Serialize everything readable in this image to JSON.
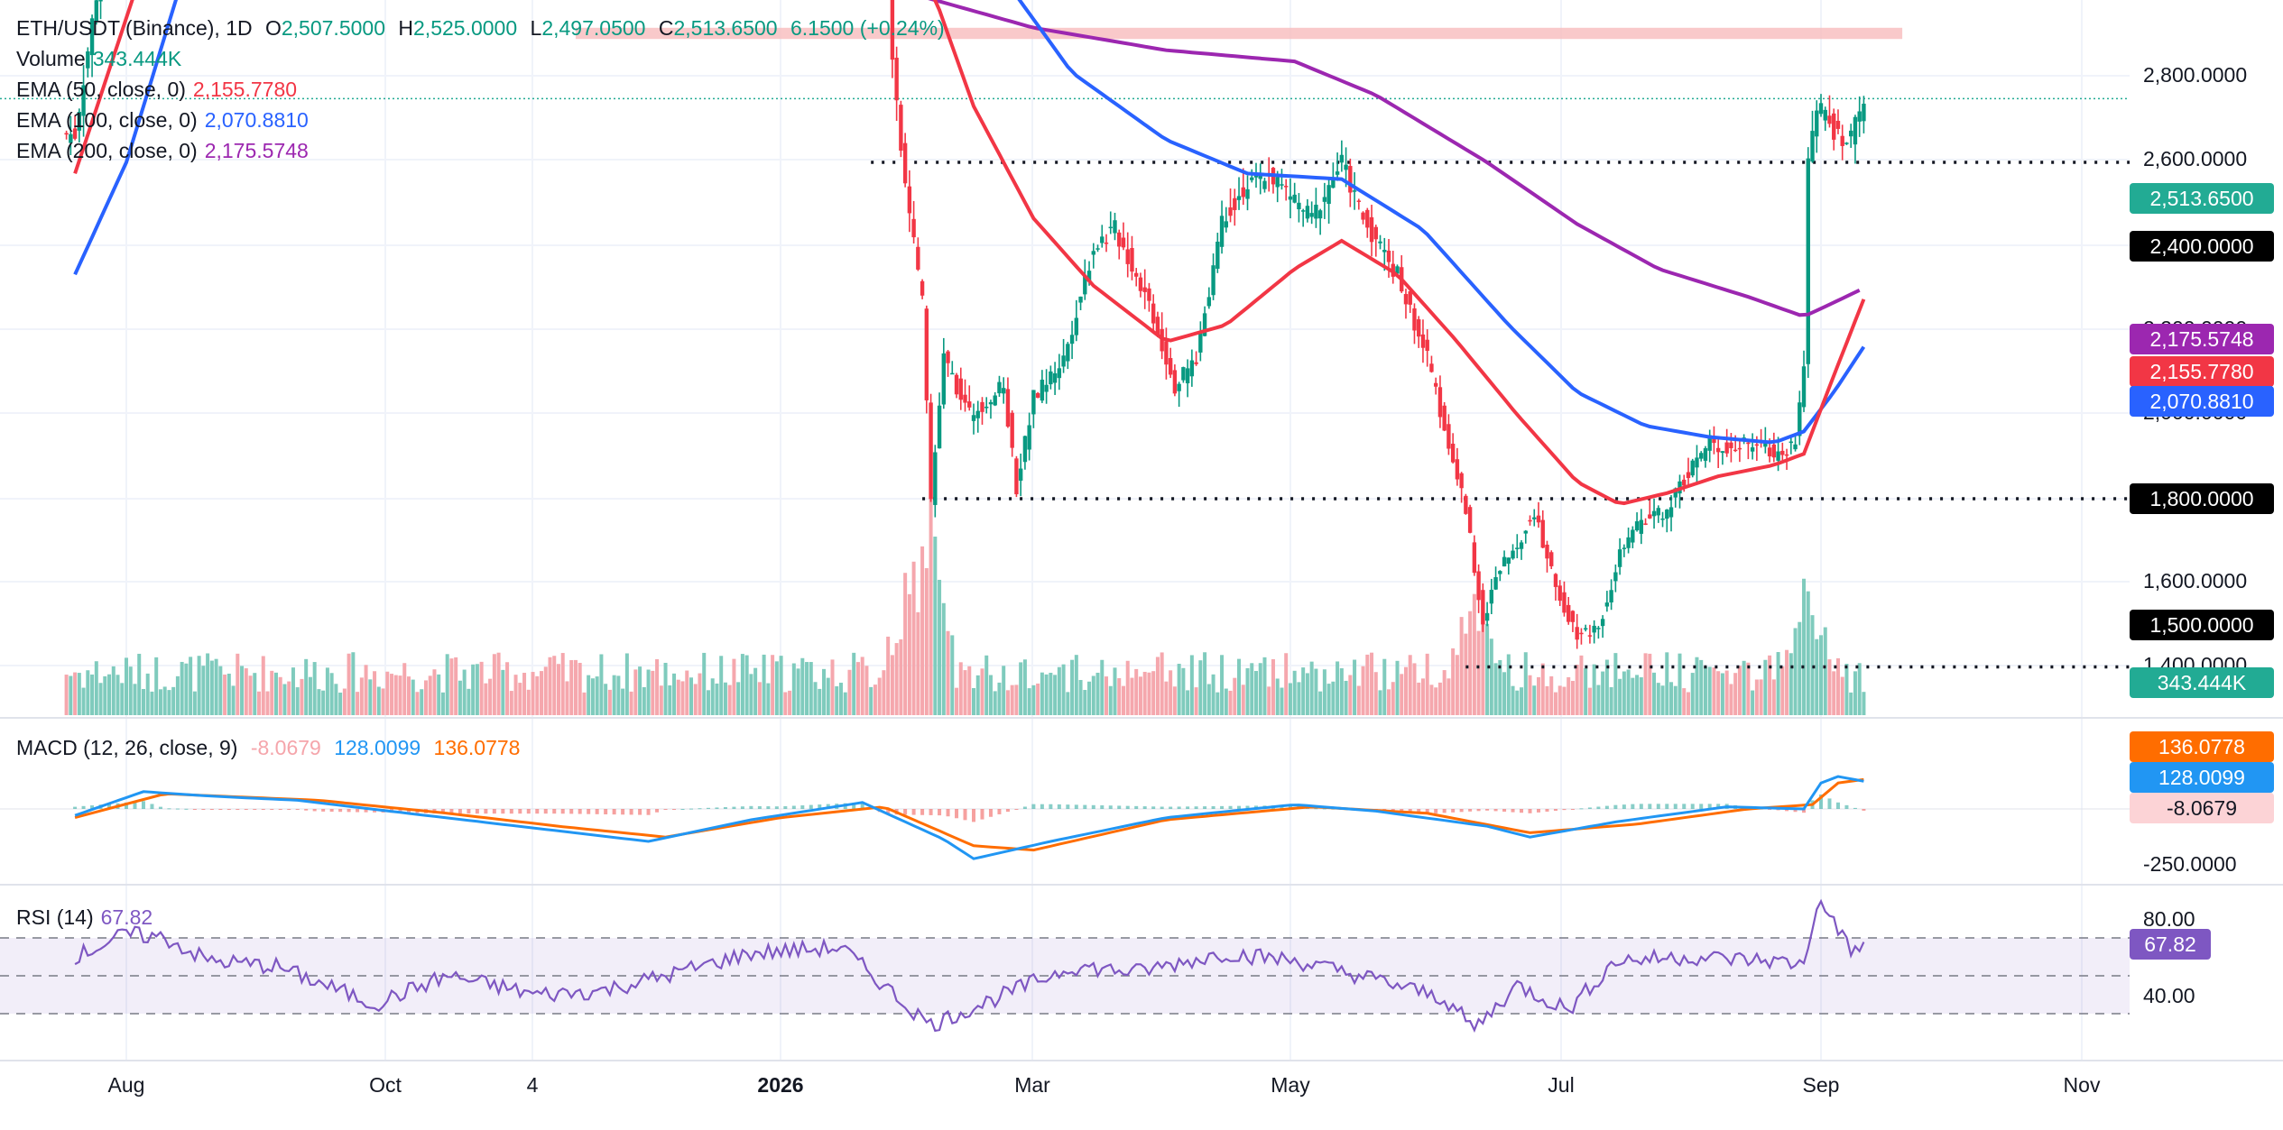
{
  "header": {
    "symbol": "ETH/USDT (Binance), 1D",
    "o_label": "O",
    "o_value": "2,507.5000",
    "h_label": "H",
    "h_value": "2,525.0000",
    "l_label": "L",
    "l_value": "2,497.0500",
    "c_label": "C",
    "c_value": "2,513.6500",
    "change": "6.1500 (+0.24%)"
  },
  "legend": {
    "volume_label": "Volume",
    "volume_value": "343.444K",
    "ema50_label": "EMA (50, close, 0)",
    "ema50_value": "2,155.7780",
    "ema100_label": "EMA (100, close, 0)",
    "ema100_value": "2,070.8810",
    "ema200_label": "EMA (200, close, 0)",
    "ema200_value": "2,175.5748",
    "macd_label": "MACD (12, 26, close, 9)",
    "macd_hist": "-8.0679",
    "macd_line": "128.0099",
    "macd_signal": "136.0778",
    "rsi_label": "RSI (14)",
    "rsi_value": "67.82"
  },
  "price_axis": [
    "2,800.0000",
    "2,600.0000",
    "2,200.0000",
    "2,000.0000",
    "1,600.0000",
    "1,400.0000"
  ],
  "price_tags": {
    "last": "2,513.6500",
    "level_2400": "2,400.0000",
    "ema200": "2,175.5748",
    "ema50": "2,155.7780",
    "ema100": "2,070.8810",
    "level_1800": "1,800.0000",
    "level_1500": "1,500.0000",
    "volume": "343.444K"
  },
  "macd_axis": [
    "-250.0000"
  ],
  "macd_tags": {
    "signal": "136.0778",
    "macd": "128.0099",
    "hist": "-8.0679"
  },
  "rsi_axis": [
    "80.00",
    "40.00"
  ],
  "rsi_tag": "67.82",
  "x_axis": [
    "Aug",
    "Oct",
    "4",
    "2026",
    "Mar",
    "May",
    "Jul",
    "Sep",
    "Nov"
  ],
  "colors": {
    "up": "#089981",
    "down": "#f23645",
    "ema50": "#f23645",
    "ema100": "#2962ff",
    "ema200": "#9c27b0",
    "macd": "#2196f3",
    "signal": "#ff6d00",
    "rsi": "#7e57c2",
    "zone": "#f8bbbd",
    "last": "#22ab94"
  },
  "chart_data": [
    {
      "type": "candlestick",
      "title": "ETH/USDT (Binance), 1D",
      "price_range": [
        1350,
        2950
      ],
      "horizontal_levels": [
        2400,
        1800,
        1500
      ],
      "resistance_zone": [
        2620,
        2640
      ],
      "last_price": 2513.65,
      "ohlc_last": {
        "open": 2507.5,
        "high": 2525.0,
        "low": 2497.05,
        "close": 2513.65,
        "change": 6.15,
        "change_pct": 0.24
      },
      "price_path": [
        [
          "2025-07-20",
          2450
        ],
        [
          "2025-07-25",
          2700
        ],
        [
          "2025-08-05",
          3300
        ],
        [
          "2025-08-12",
          3900
        ],
        [
          "2025-08-20",
          4300
        ],
        [
          "2025-09-01",
          4400
        ],
        [
          "2025-09-20",
          4500
        ],
        [
          "2025-10-10",
          4200
        ],
        [
          "2025-10-25",
          4000
        ],
        [
          "2025-11-05",
          3700
        ],
        [
          "2025-11-12",
          3300
        ],
        [
          "2025-11-15",
          3000
        ],
        [
          "2025-11-16",
          2750
        ],
        [
          "2025-11-22",
          2950
        ],
        [
          "2025-12-05",
          3050
        ],
        [
          "2025-12-20",
          2980
        ],
        [
          "2026-01-05",
          3050
        ],
        [
          "2026-01-15",
          3100
        ],
        [
          "2026-01-22",
          2950
        ],
        [
          "2026-01-25",
          2900
        ],
        [
          "2026-01-27",
          2600
        ],
        [
          "2026-01-30",
          2350
        ],
        [
          "2026-02-03",
          2150
        ],
        [
          "2026-02-05",
          1800
        ],
        [
          "2026-02-08",
          2050
        ],
        [
          "2026-02-14",
          1950
        ],
        [
          "2026-02-22",
          2000
        ],
        [
          "2026-02-25",
          1820
        ],
        [
          "2026-03-01",
          1980
        ],
        [
          "2026-03-08",
          2050
        ],
        [
          "2026-03-15",
          2250
        ],
        [
          "2026-03-20",
          2280
        ],
        [
          "2026-03-28",
          2150
        ],
        [
          "2026-04-03",
          2000
        ],
        [
          "2026-04-08",
          2050
        ],
        [
          "2026-04-14",
          2300
        ],
        [
          "2026-04-19",
          2350
        ],
        [
          "2026-04-25",
          2380
        ],
        [
          "2026-05-05",
          2300
        ],
        [
          "2026-05-12",
          2400
        ],
        [
          "2026-05-17",
          2300
        ],
        [
          "2026-05-25",
          2200
        ],
        [
          "2026-06-01",
          2050
        ],
        [
          "2026-06-06",
          1900
        ],
        [
          "2026-06-10",
          1780
        ],
        [
          "2026-06-14",
          1580
        ],
        [
          "2026-06-18",
          1680
        ],
        [
          "2026-06-22",
          1720
        ],
        [
          "2026-06-26",
          1780
        ],
        [
          "2026-07-01",
          1640
        ],
        [
          "2026-07-06",
          1560
        ],
        [
          "2026-07-11",
          1570
        ],
        [
          "2026-07-16",
          1700
        ],
        [
          "2026-07-21",
          1760
        ],
        [
          "2026-07-27",
          1780
        ],
        [
          "2026-08-01",
          1850
        ],
        [
          "2026-08-06",
          1900
        ],
        [
          "2026-08-11",
          1890
        ],
        [
          "2026-08-16",
          1900
        ],
        [
          "2026-08-21",
          1880
        ],
        [
          "2026-08-26",
          1900
        ],
        [
          "2026-08-28",
          2050
        ],
        [
          "2026-08-29",
          2400
        ],
        [
          "2026-08-31",
          2500
        ],
        [
          "2026-09-03",
          2470
        ],
        [
          "2026-09-06",
          2430
        ],
        [
          "2026-09-08",
          2440
        ],
        [
          "2026-09-11",
          2513.65
        ]
      ],
      "ema50_path": [
        [
          "2025-07-20",
          2380
        ],
        [
          "2025-08-05",
          2750
        ],
        [
          "2025-08-15",
          3100
        ],
        [
          "2025-09-01",
          3500
        ],
        [
          "2026-01-25",
          2950
        ],
        [
          "2026-02-01",
          2800
        ],
        [
          "2026-02-15",
          2500
        ],
        [
          "2026-03-01",
          2300
        ],
        [
          "2026-03-15",
          2180
        ],
        [
          "2026-04-01",
          2080
        ],
        [
          "2026-04-15",
          2110
        ],
        [
          "2026-05-01",
          2210
        ],
        [
          "2026-05-12",
          2260
        ],
        [
          "2026-05-25",
          2200
        ],
        [
          "2026-06-08",
          2080
        ],
        [
          "2026-06-22",
          1950
        ],
        [
          "2026-07-06",
          1830
        ],
        [
          "2026-07-16",
          1790
        ],
        [
          "2026-07-27",
          1810
        ],
        [
          "2026-08-08",
          1840
        ],
        [
          "2026-08-21",
          1860
        ],
        [
          "2026-08-28",
          1880
        ],
        [
          "2026-09-04",
          2020
        ],
        [
          "2026-09-11",
          2155.778
        ]
      ],
      "ema100_path": [
        [
          "2025-07-20",
          2200
        ],
        [
          "2025-08-01",
          2400
        ],
        [
          "2025-08-15",
          2750
        ],
        [
          "2025-09-01",
          3150
        ],
        [
          "2026-01-25",
          3300
        ],
        [
          "2026-02-05",
          2950
        ],
        [
          "2026-02-20",
          2750
        ],
        [
          "2026-03-10",
          2560
        ],
        [
          "2026-04-01",
          2440
        ],
        [
          "2026-04-20",
          2380
        ],
        [
          "2026-05-12",
          2370
        ],
        [
          "2026-05-31",
          2280
        ],
        [
          "2026-06-20",
          2110
        ],
        [
          "2026-07-06",
          1990
        ],
        [
          "2026-07-22",
          1930
        ],
        [
          "2026-08-06",
          1910
        ],
        [
          "2026-08-21",
          1900
        ],
        [
          "2026-08-28",
          1920
        ],
        [
          "2026-09-04",
          1990
        ],
        [
          "2026-09-11",
          2070.881
        ]
      ],
      "ema200_path": [
        [
          "2025-10-25",
          3200
        ],
        [
          "2025-11-15",
          3050
        ],
        [
          "2025-12-10",
          2950
        ],
        [
          "2026-01-10",
          2850
        ],
        [
          "2026-02-01",
          2700
        ],
        [
          "2026-03-01",
          2640
        ],
        [
          "2026-04-01",
          2600
        ],
        [
          "2026-05-01",
          2580
        ],
        [
          "2026-05-20",
          2520
        ],
        [
          "2026-06-15",
          2400
        ],
        [
          "2026-07-06",
          2290
        ],
        [
          "2026-07-25",
          2210
        ],
        [
          "2026-08-15",
          2160
        ],
        [
          "2026-08-28",
          2125
        ],
        [
          "2026-09-04",
          2150
        ],
        [
          "2026-09-11",
          2175.5748
        ]
      ],
      "volume_last": "343.444K",
      "volume_spikes": [
        [
          "2026-01-30",
          "high"
        ],
        [
          "2026-02-05",
          "highest"
        ],
        [
          "2026-06-12",
          "high"
        ],
        [
          "2026-08-29",
          "high"
        ]
      ]
    },
    {
      "type": "line",
      "title": "MACD (12, 26, close, 9)",
      "series": [
        {
          "name": "MACD",
          "last": 128.0099
        },
        {
          "name": "Signal",
          "last": 136.0778
        },
        {
          "name": "Histogram",
          "last": -8.0679
        }
      ],
      "macd_path": [
        [
          "2025-07-20",
          -30
        ],
        [
          "2025-08-05",
          80
        ],
        [
          "2025-08-20",
          60
        ],
        [
          "2025-09-10",
          40
        ],
        [
          "2025-10-10",
          -30
        ],
        [
          "2025-11-05",
          -90
        ],
        [
          "2025-12-01",
          -150
        ],
        [
          "2025-12-25",
          -50
        ],
        [
          "2026-01-20",
          30
        ],
        [
          "2026-02-08",
          -140
        ],
        [
          "2026-02-15",
          -230
        ],
        [
          "2026-03-05",
          -150
        ],
        [
          "2026-04-01",
          -40
        ],
        [
          "2026-05-01",
          20
        ],
        [
          "2026-05-20",
          -10
        ],
        [
          "2026-06-15",
          -80
        ],
        [
          "2026-06-25",
          -130
        ],
        [
          "2026-07-15",
          -60
        ],
        [
          "2026-08-10",
          10
        ],
        [
          "2026-08-28",
          0
        ],
        [
          "2026-09-01",
          120
        ],
        [
          "2026-09-05",
          150
        ],
        [
          "2026-09-11",
          128.0099
        ]
      ],
      "signal_path": [
        [
          "2025-07-20",
          -40
        ],
        [
          "2025-08-10",
          70
        ],
        [
          "2025-09-15",
          40
        ],
        [
          "2025-10-15",
          -20
        ],
        [
          "2025-11-10",
          -80
        ],
        [
          "2025-12-05",
          -130
        ],
        [
          "2026-01-01",
          -40
        ],
        [
          "2026-01-25",
          10
        ],
        [
          "2026-02-15",
          -170
        ],
        [
          "2026-03-01",
          -190
        ],
        [
          "2026-04-01",
          -50
        ],
        [
          "2026-05-05",
          10
        ],
        [
          "2026-06-01",
          -20
        ],
        [
          "2026-06-25",
          -110
        ],
        [
          "2026-07-20",
          -70
        ],
        [
          "2026-08-15",
          0
        ],
        [
          "2026-08-30",
          20
        ],
        [
          "2026-09-05",
          120
        ],
        [
          "2026-09-11",
          136.0778
        ]
      ],
      "ylim": [
        -300,
        200
      ]
    },
    {
      "type": "line",
      "title": "RSI (14)",
      "series": [
        {
          "name": "RSI",
          "last": 67.82
        }
      ],
      "bands": [
        30,
        50,
        70
      ],
      "rsi_path": [
        [
          "2025-07-20",
          60
        ],
        [
          "2025-08-01",
          72
        ],
        [
          "2025-08-10",
          70
        ],
        [
          "2025-08-20",
          58
        ],
        [
          "2025-09-05",
          55
        ],
        [
          "2025-09-28",
          35
        ],
        [
          "2025-10-15",
          50
        ],
        [
          "2025-11-05",
          40
        ],
        [
          "2025-11-20",
          42
        ],
        [
          "2025-12-05",
          50
        ],
        [
          "2025-12-25",
          62
        ],
        [
          "2026-01-15",
          65
        ],
        [
          "2026-01-30",
          35
        ],
        [
          "2026-02-05",
          24
        ],
        [
          "2026-02-20",
          38
        ],
        [
          "2026-03-10",
          55
        ],
        [
          "2026-03-25",
          52
        ],
        [
          "2026-04-15",
          62
        ],
        [
          "2026-05-01",
          58
        ],
        [
          "2026-05-20",
          48
        ],
        [
          "2026-06-05",
          38
        ],
        [
          "2026-06-12",
          22
        ],
        [
          "2026-06-22",
          45
        ],
        [
          "2026-07-04",
          32
        ],
        [
          "2026-07-15",
          58
        ],
        [
          "2026-08-01",
          60
        ],
        [
          "2026-08-20",
          58
        ],
        [
          "2026-08-28",
          56
        ],
        [
          "2026-08-31",
          88
        ],
        [
          "2026-09-04",
          80
        ],
        [
          "2026-09-08",
          62
        ],
        [
          "2026-09-11",
          67.82
        ]
      ],
      "ylim": [
        20,
        90
      ]
    }
  ]
}
